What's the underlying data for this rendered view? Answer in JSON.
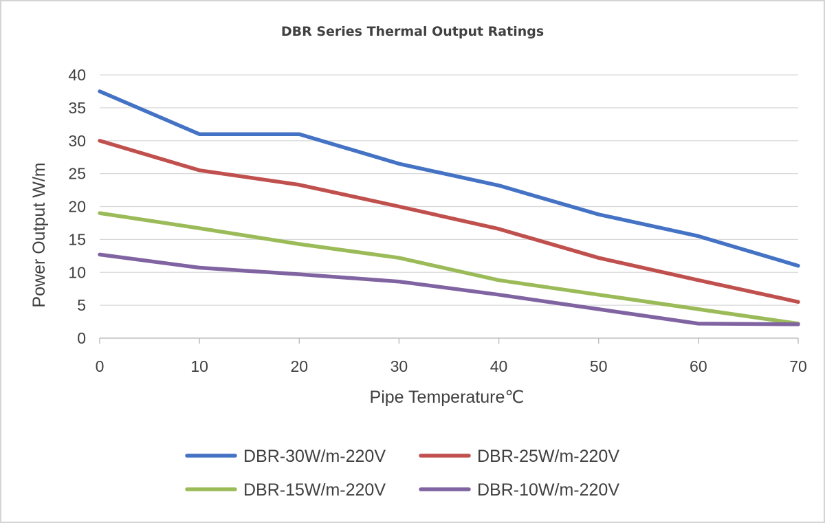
{
  "chart_data": {
    "type": "line",
    "title": "DBR Series Thermal Output Ratings",
    "xlabel": "Pipe Temperature℃",
    "ylabel": "Power Output W/m",
    "x": [
      0,
      10,
      20,
      30,
      40,
      50,
      60,
      70
    ],
    "x_ticks": [
      "0",
      "10",
      "20",
      "30",
      "40",
      "50",
      "60",
      "70"
    ],
    "y_ticks": [
      "0",
      "5",
      "10",
      "15",
      "20",
      "25",
      "30",
      "35",
      "40"
    ],
    "xlim": [
      0,
      70
    ],
    "ylim": [
      0,
      40
    ],
    "grid": "horizontal",
    "legend_position": "bottom",
    "series": [
      {
        "name": "DBR-30W/m-220V",
        "color": "#4472C4",
        "values": [
          37.5,
          31,
          31,
          26.5,
          23.2,
          18.8,
          15.5,
          11
        ]
      },
      {
        "name": "DBR-25W/m-220V",
        "color": "#C0504D",
        "values": [
          30,
          25.5,
          23.3,
          20,
          16.6,
          12.2,
          8.8,
          5.5
        ]
      },
      {
        "name": "DBR-15W/m-220V",
        "color": "#9BBB59",
        "values": [
          19,
          16.7,
          14.3,
          12.2,
          8.8,
          6.6,
          4.4,
          2.2
        ]
      },
      {
        "name": "DBR-10W/m-220V",
        "color": "#8064A2",
        "values": [
          12.7,
          10.7,
          9.7,
          8.6,
          6.6,
          4.4,
          2.2,
          2.1
        ]
      }
    ]
  }
}
